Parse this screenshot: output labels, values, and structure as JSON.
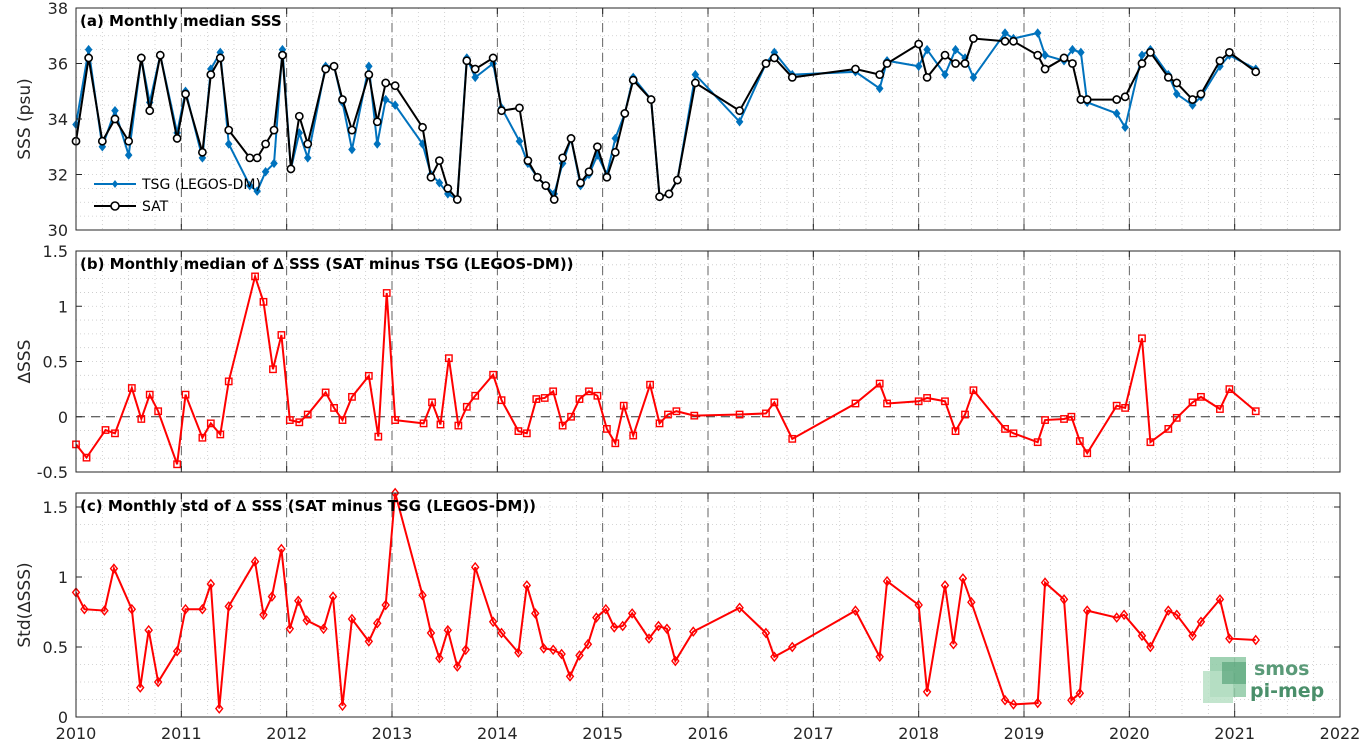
{
  "chart_data": [
    {
      "id": "a",
      "type": "line",
      "title": "(a) Monthly median SSS",
      "ylabel": "SSS (psu)",
      "xlim": [
        2010,
        2022
      ],
      "ylim": [
        30,
        38
      ],
      "yticks": [
        30,
        32,
        34,
        36,
        38
      ],
      "xticks": [
        2010,
        2011,
        2012,
        2013,
        2014,
        2015,
        2016,
        2017,
        2018,
        2019,
        2020,
        2021,
        2022
      ],
      "grid": true,
      "legend_position": "bottom-left",
      "x": [
        2010.0,
        2010.12,
        2010.25,
        2010.37,
        2010.5,
        2010.62,
        2010.7,
        2010.8,
        2010.96,
        2011.04,
        2011.2,
        2011.28,
        2011.37,
        2011.45,
        2011.65,
        2011.72,
        2011.8,
        2011.88,
        2011.96,
        2012.04,
        2012.12,
        2012.2,
        2012.37,
        2012.45,
        2012.53,
        2012.62,
        2012.78,
        2012.86,
        2012.94,
        2013.03,
        2013.29,
        2013.37,
        2013.45,
        2013.53,
        2013.62,
        2013.71,
        2013.79,
        2013.96,
        2014.04,
        2014.21,
        2014.29,
        2014.38,
        2014.46,
        2014.54,
        2014.62,
        2014.7,
        2014.79,
        2014.87,
        2014.95,
        2015.04,
        2015.12,
        2015.21,
        2015.29,
        2015.46,
        2015.54,
        2015.63,
        2015.71,
        2015.88,
        2016.3,
        2016.55,
        2016.63,
        2016.8,
        2017.4,
        2017.63,
        2017.7,
        2018.0,
        2018.08,
        2018.25,
        2018.35,
        2018.44,
        2018.52,
        2018.82,
        2018.9,
        2019.13,
        2019.2,
        2019.38,
        2019.46,
        2019.54,
        2019.6,
        2019.88,
        2019.96,
        2020.12,
        2020.2,
        2020.37,
        2020.45,
        2020.6,
        2020.68,
        2020.86,
        2020.95,
        2021.2
      ],
      "series": [
        {
          "name": "TSG (LEGOS-DM)",
          "color": "#0072BD",
          "marker": "diamond",
          "values": [
            33.8,
            36.5,
            33.0,
            34.3,
            32.7,
            36.2,
            34.6,
            36.3,
            33.5,
            35.0,
            32.6,
            35.8,
            36.4,
            33.1,
            31.6,
            31.4,
            32.1,
            32.4,
            36.5,
            32.2,
            33.5,
            32.6,
            35.9,
            35.9,
            34.6,
            32.9,
            35.9,
            33.1,
            34.7,
            34.5,
            33.1,
            32.0,
            31.7,
            31.3,
            31.1,
            36.2,
            35.5,
            36.0,
            34.4,
            33.2,
            32.4,
            31.9,
            31.6,
            31.3,
            32.4,
            33.3,
            31.6,
            32.0,
            32.7,
            32.0,
            33.3,
            34.2,
            35.5,
            34.7,
            31.2,
            31.3,
            31.8,
            35.6,
            33.9,
            36.0,
            36.4,
            35.6,
            35.7,
            35.1,
            36.1,
            35.9,
            36.5,
            35.6,
            36.5,
            36.2,
            35.5,
            37.1,
            36.9,
            37.1,
            36.3,
            36.1,
            36.5,
            36.4,
            34.6,
            34.2,
            33.7,
            36.3,
            36.5,
            35.6,
            34.9,
            34.5,
            34.8,
            35.9,
            36.3,
            35.8
          ]
        },
        {
          "name": "SAT",
          "color": "#000000",
          "marker": "circle",
          "values": [
            33.2,
            36.2,
            33.2,
            34.0,
            33.2,
            36.2,
            34.3,
            36.3,
            33.3,
            34.9,
            32.8,
            35.6,
            36.2,
            33.6,
            32.6,
            32.6,
            33.1,
            33.6,
            36.3,
            32.2,
            34.1,
            33.1,
            35.8,
            35.9,
            34.7,
            33.6,
            35.6,
            33.9,
            35.3,
            35.2,
            33.7,
            31.9,
            32.5,
            31.5,
            31.1,
            36.1,
            35.8,
            36.2,
            34.3,
            34.4,
            32.5,
            31.9,
            31.6,
            31.1,
            32.6,
            33.3,
            31.7,
            32.1,
            33.0,
            31.9,
            32.8,
            34.2,
            35.4,
            34.7,
            31.2,
            31.3,
            31.8,
            35.3,
            34.3,
            36.0,
            36.2,
            35.5,
            35.8,
            35.6,
            36.0,
            36.7,
            35.5,
            36.3,
            36.0,
            36.0,
            36.9,
            36.8,
            36.8,
            36.3,
            35.8,
            36.2,
            36.0,
            34.7,
            34.7,
            34.7,
            34.8,
            36.0,
            36.4,
            35.5,
            35.3,
            34.7,
            34.9,
            36.1,
            36.4,
            35.7
          ]
        }
      ]
    },
    {
      "id": "b",
      "type": "line",
      "title": "(b) Monthly median of ∆ SSS (SAT minus TSG (LEGOS-DM))",
      "ylabel": "∆SSS",
      "xlim": [
        2010,
        2022
      ],
      "ylim": [
        -0.5,
        1.5
      ],
      "yticks": [
        -0.5,
        0,
        0.5,
        1,
        1.5
      ],
      "yticklabels": [
        "-0.5",
        "0",
        "0.5",
        "1",
        "1.5"
      ],
      "xticks": [
        2010,
        2011,
        2012,
        2013,
        2014,
        2015,
        2016,
        2017,
        2018,
        2019,
        2020,
        2021,
        2022
      ],
      "grid": true,
      "reference_line": 0,
      "x": [
        2010.0,
        2010.1,
        2010.28,
        2010.37,
        2010.53,
        2010.62,
        2010.7,
        2010.78,
        2010.96,
        2011.04,
        2011.2,
        2011.28,
        2011.37,
        2011.45,
        2011.7,
        2011.78,
        2011.87,
        2011.95,
        2012.03,
        2012.12,
        2012.2,
        2012.37,
        2012.45,
        2012.53,
        2012.62,
        2012.78,
        2012.87,
        2012.95,
        2013.03,
        2013.3,
        2013.38,
        2013.46,
        2013.54,
        2013.63,
        2013.71,
        2013.79,
        2013.96,
        2014.04,
        2014.2,
        2014.28,
        2014.37,
        2014.45,
        2014.53,
        2014.62,
        2014.7,
        2014.78,
        2014.87,
        2014.95,
        2015.04,
        2015.12,
        2015.2,
        2015.29,
        2015.45,
        2015.54,
        2015.62,
        2015.7,
        2015.87,
        2016.3,
        2016.55,
        2016.63,
        2016.8,
        2017.4,
        2017.63,
        2017.7,
        2018.0,
        2018.08,
        2018.25,
        2018.35,
        2018.44,
        2018.52,
        2018.82,
        2018.9,
        2019.13,
        2019.2,
        2019.38,
        2019.45,
        2019.53,
        2019.6,
        2019.88,
        2019.96,
        2020.12,
        2020.2,
        2020.37,
        2020.45,
        2020.6,
        2020.68,
        2020.86,
        2020.95,
        2021.2
      ],
      "series": [
        {
          "name": "",
          "color": "#ff0000",
          "marker": "square",
          "values": [
            -0.25,
            -0.37,
            -0.12,
            -0.15,
            0.26,
            -0.02,
            0.2,
            0.05,
            -0.43,
            0.2,
            -0.19,
            -0.06,
            -0.16,
            0.32,
            1.27,
            1.04,
            0.43,
            0.74,
            -0.03,
            -0.05,
            0.02,
            0.22,
            0.08,
            -0.03,
            0.18,
            0.37,
            -0.18,
            1.12,
            -0.03,
            -0.06,
            0.13,
            -0.07,
            0.53,
            -0.08,
            0.09,
            0.19,
            0.38,
            0.15,
            -0.13,
            -0.15,
            0.16,
            0.17,
            0.23,
            -0.08,
            0.0,
            0.16,
            0.23,
            0.19,
            -0.11,
            -0.24,
            0.1,
            -0.17,
            0.29,
            -0.06,
            0.02,
            0.05,
            0.01,
            0.02,
            0.03,
            0.13,
            -0.2,
            0.12,
            0.3,
            0.12,
            0.14,
            0.17,
            0.14,
            -0.13,
            0.02,
            0.24,
            -0.11,
            -0.15,
            -0.23,
            -0.03,
            -0.02,
            0.0,
            -0.22,
            -0.33,
            0.1,
            0.08,
            0.71,
            -0.23,
            -0.11,
            -0.01,
            0.13,
            0.18,
            0.07,
            0.25,
            0.05
          ]
        }
      ]
    },
    {
      "id": "c",
      "type": "line",
      "title": "(c) Monthly std of ∆ SSS (SAT minus TSG (LEGOS-DM))",
      "ylabel": "Std(∆SSS)",
      "xlim": [
        2010,
        2022
      ],
      "ylim": [
        0,
        1.6
      ],
      "yticks": [
        0,
        0.5,
        1,
        1.5
      ],
      "yticklabels": [
        "0",
        "0.5",
        "1",
        "1.5"
      ],
      "xticks": [
        2010,
        2011,
        2012,
        2013,
        2014,
        2015,
        2016,
        2017,
        2018,
        2019,
        2020,
        2021,
        2022
      ],
      "xticklabels": [
        "2010",
        "2011",
        "2012",
        "2013",
        "2014",
        "2015",
        "2016",
        "2017",
        "2018",
        "2019",
        "2020",
        "2021",
        "2022"
      ],
      "grid": true,
      "x": [
        2010.0,
        2010.08,
        2010.27,
        2010.36,
        2010.53,
        2010.61,
        2010.69,
        2010.78,
        2010.96,
        2011.04,
        2011.2,
        2011.28,
        2011.36,
        2011.45,
        2011.7,
        2011.78,
        2011.86,
        2011.95,
        2012.03,
        2012.11,
        2012.19,
        2012.35,
        2012.44,
        2012.53,
        2012.62,
        2012.78,
        2012.86,
        2012.94,
        2013.03,
        2013.29,
        2013.37,
        2013.45,
        2013.53,
        2013.62,
        2013.7,
        2013.79,
        2013.96,
        2014.04,
        2014.2,
        2014.28,
        2014.36,
        2014.44,
        2014.53,
        2014.61,
        2014.69,
        2014.78,
        2014.86,
        2014.94,
        2015.03,
        2015.11,
        2015.19,
        2015.28,
        2015.44,
        2015.53,
        2015.61,
        2015.69,
        2015.86,
        2016.3,
        2016.55,
        2016.63,
        2016.8,
        2017.4,
        2017.63,
        2017.7,
        2018.0,
        2018.08,
        2018.25,
        2018.33,
        2018.42,
        2018.5,
        2018.82,
        2018.9,
        2019.13,
        2019.2,
        2019.38,
        2019.45,
        2019.53,
        2019.6,
        2019.88,
        2019.95,
        2020.12,
        2020.2,
        2020.37,
        2020.45,
        2020.6,
        2020.68,
        2020.86,
        2020.95,
        2021.2
      ],
      "series": [
        {
          "name": "",
          "color": "#ff0000",
          "marker": "diamond",
          "values": [
            0.89,
            0.77,
            0.76,
            1.06,
            0.77,
            0.21,
            0.62,
            0.25,
            0.47,
            0.77,
            0.77,
            0.95,
            0.06,
            0.79,
            1.11,
            0.73,
            0.86,
            1.2,
            0.63,
            0.83,
            0.69,
            0.63,
            0.86,
            0.08,
            0.7,
            0.54,
            0.67,
            0.8,
            1.6,
            0.87,
            0.6,
            0.42,
            0.62,
            0.36,
            0.48,
            1.07,
            0.68,
            0.6,
            0.46,
            0.94,
            0.74,
            0.49,
            0.48,
            0.45,
            0.29,
            0.44,
            0.52,
            0.71,
            0.77,
            0.64,
            0.65,
            0.74,
            0.56,
            0.65,
            0.63,
            0.4,
            0.61,
            0.78,
            0.6,
            0.43,
            0.5,
            0.76,
            0.43,
            0.97,
            0.8,
            0.18,
            0.94,
            0.52,
            0.99,
            0.82,
            0.12,
            0.09,
            0.1,
            0.96,
            0.84,
            0.12,
            0.17,
            0.76,
            0.71,
            0.73,
            0.58,
            0.5,
            0.76,
            0.73,
            0.58,
            0.68,
            0.84,
            0.56,
            0.55
          ]
        }
      ]
    }
  ],
  "logo": {
    "line1": "smos",
    "line2": "pi-mep"
  }
}
